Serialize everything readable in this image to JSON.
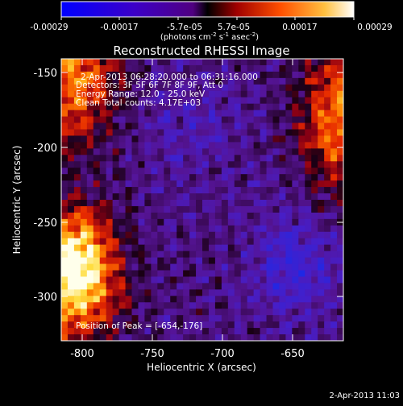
{
  "colorbar": {
    "ticks": [
      "-0.00029",
      "-0.00017",
      "-5.7e-05",
      "5.7e-05",
      "0.00017",
      "0.00029"
    ],
    "units_main": "(photons cm",
    "units_sup1": "-2",
    "units_mid": " s",
    "units_sup2": "-1",
    "units_tail": " asec",
    "units_sup3": "-2",
    "units_close": ")"
  },
  "plot": {
    "title": "Reconstructed RHESSI Image",
    "xlabel": "Heliocentric X (arcsec)",
    "ylabel": "Heliocentric Y (arcsec)",
    "xticks": [
      "-800",
      "-750",
      "-700",
      "-650"
    ],
    "yticks": [
      "-150",
      "-200",
      "-250",
      "-300"
    ]
  },
  "annotations": {
    "time_range": "2-Apr-2013 06:28:20.000 to 06:31:16.000",
    "detectors": "Detectors: 3F 5F 6F 7F 8F 9F, Att 0",
    "energy": "Energy Range: 12.0 - 25.0 keV",
    "clean": "Clean     Total counts: 4.17E+03",
    "peak": "Position of Peak = [-654,-176]"
  },
  "footer_date": "2-Apr-2013 11:03",
  "colors": {
    "background": "#000000",
    "colormap": [
      "#0000ff",
      "#3c00c0",
      "#500080",
      "#780040",
      "#c00000",
      "#ff5000",
      "#ffa000",
      "#ffff80",
      "#ffffff"
    ]
  }
}
